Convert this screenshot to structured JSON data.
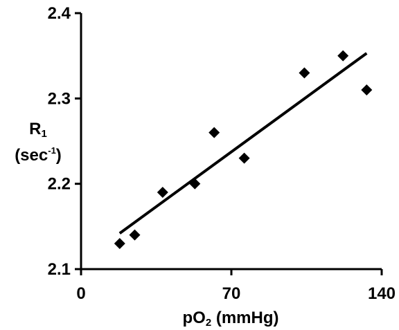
{
  "chart_data": {
    "type": "scatter",
    "title": "",
    "xlabel": {
      "main": "pO",
      "subscript": "2",
      "unit": " (mmHg)"
    },
    "ylabel": {
      "line1_main": "R",
      "line1_subscript": "1",
      "line2_main": "(sec",
      "line2_superscript": "-1",
      "line2_end": ")"
    },
    "xlim": [
      0,
      140
    ],
    "ylim": [
      2.1,
      2.4
    ],
    "xticks": [
      {
        "value": 0,
        "label": "0"
      },
      {
        "value": 70,
        "label": "70"
      },
      {
        "value": 140,
        "label": "140"
      }
    ],
    "yticks": [
      {
        "value": 2.1,
        "label": "2.1"
      },
      {
        "value": 2.2,
        "label": "2.2"
      },
      {
        "value": 2.3,
        "label": "2.3"
      },
      {
        "value": 2.4,
        "label": "2.4"
      }
    ],
    "grid": false,
    "legend": "none",
    "marker": "diamond",
    "color": "#000000",
    "series": [
      {
        "points": [
          {
            "x": 18,
            "y": 2.13
          },
          {
            "x": 25,
            "y": 2.14
          },
          {
            "x": 38,
            "y": 2.19
          },
          {
            "x": 53,
            "y": 2.2
          },
          {
            "x": 62,
            "y": 2.26
          },
          {
            "x": 76,
            "y": 2.23
          },
          {
            "x": 104,
            "y": 2.33
          },
          {
            "x": 122,
            "y": 2.35
          },
          {
            "x": 133,
            "y": 2.31
          }
        ]
      }
    ],
    "trendline": {
      "type": "linear",
      "from": {
        "x": 18,
        "y": 2.142
      },
      "to": {
        "x": 133,
        "y": 2.353
      }
    }
  }
}
